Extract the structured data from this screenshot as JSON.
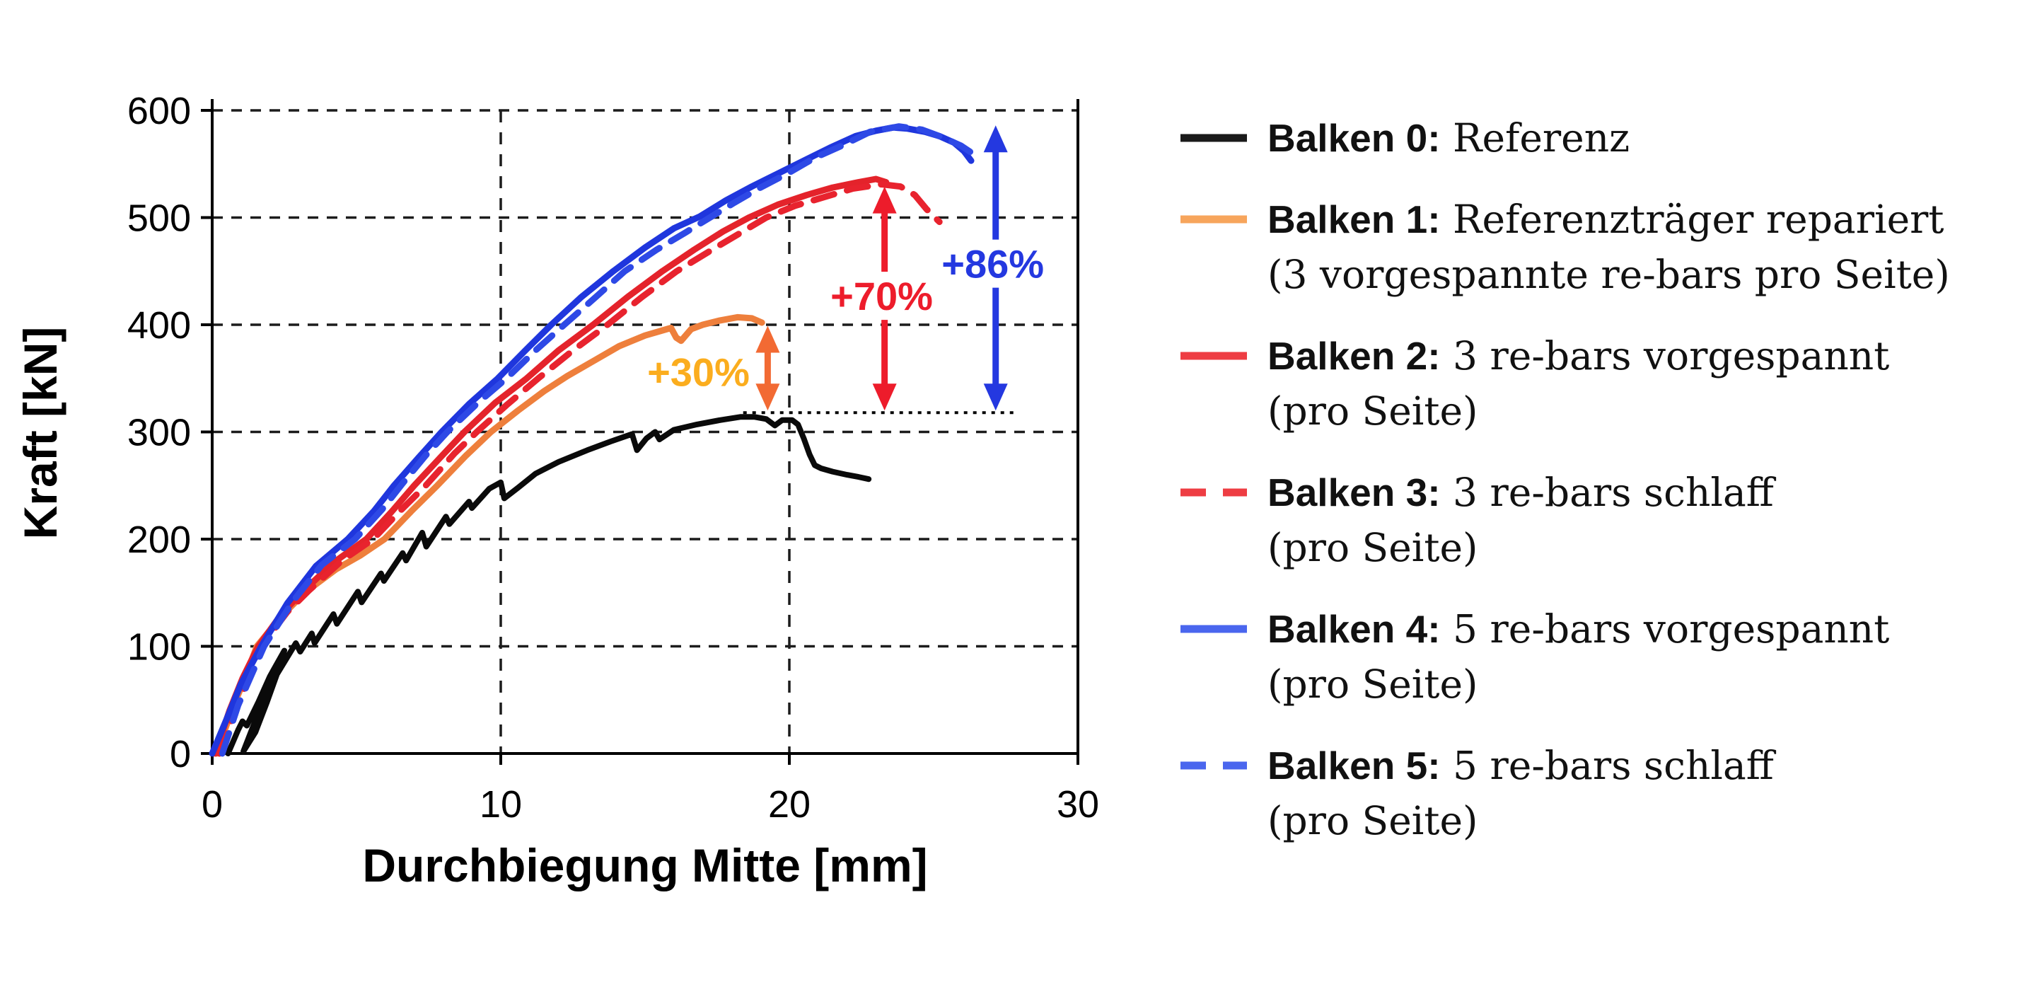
{
  "figure": {
    "background": "#ffffff"
  },
  "axes": {
    "x": {
      "label": "Durchbiegung Mitte [mm]",
      "ticks": [
        0,
        10,
        20,
        30
      ],
      "range": [
        0,
        30
      ],
      "gridlines": [
        10,
        20
      ]
    },
    "y": {
      "label": "Kraft [kN]",
      "ticks": [
        0,
        100,
        200,
        300,
        400,
        500,
        600
      ],
      "range": [
        0,
        600
      ],
      "gridlines": [
        100,
        200,
        300,
        400,
        500,
        600
      ]
    }
  },
  "chart_data": {
    "type": "line",
    "title": "",
    "xlabel": "Durchbiegung Mitte [mm]",
    "ylabel": "Kraft [kN]",
    "xlim": [
      0,
      30
    ],
    "ylim": [
      0,
      600
    ],
    "grid": "dashed",
    "legend_position": "right",
    "series": [
      {
        "id": "balken-0",
        "name": "Balken 0: Referenz",
        "color": "#0a0a0a",
        "style": "solid",
        "width": 8,
        "points": [
          [
            0.55,
            0
          ],
          [
            0.9,
            22
          ],
          [
            1.05,
            30
          ],
          [
            1.2,
            26
          ],
          [
            1.6,
            48
          ],
          [
            2.0,
            72
          ],
          [
            2.5,
            96
          ],
          [
            2.3,
            78
          ],
          [
            1.9,
            48
          ],
          [
            1.5,
            20
          ],
          [
            1.08,
            2
          ],
          [
            1.6,
            38
          ],
          [
            2.2,
            72
          ],
          [
            2.9,
            103
          ],
          [
            3.05,
            95
          ],
          [
            3.45,
            112
          ],
          [
            3.55,
            103
          ],
          [
            4.2,
            130
          ],
          [
            4.32,
            121
          ],
          [
            5.05,
            151
          ],
          [
            5.18,
            141
          ],
          [
            5.85,
            168
          ],
          [
            5.95,
            161
          ],
          [
            6.6,
            187
          ],
          [
            6.72,
            180
          ],
          [
            7.28,
            206
          ],
          [
            7.42,
            193
          ],
          [
            8.1,
            221
          ],
          [
            8.22,
            214
          ],
          [
            8.9,
            235
          ],
          [
            9.0,
            229
          ],
          [
            9.6,
            247
          ],
          [
            10.0,
            253
          ],
          [
            10.12,
            238
          ],
          [
            10.6,
            248
          ],
          [
            11.2,
            261
          ],
          [
            12.0,
            272
          ],
          [
            13.0,
            283
          ],
          [
            13.8,
            291
          ],
          [
            14.55,
            298
          ],
          [
            14.72,
            283
          ],
          [
            15.05,
            294
          ],
          [
            15.35,
            300
          ],
          [
            15.5,
            293
          ],
          [
            16.0,
            302
          ],
          [
            16.8,
            307
          ],
          [
            17.6,
            311
          ],
          [
            18.3,
            314
          ],
          [
            18.8,
            314
          ],
          [
            19.2,
            312
          ],
          [
            19.5,
            306
          ],
          [
            19.75,
            311
          ],
          [
            20.1,
            311
          ],
          [
            20.3,
            307
          ],
          [
            20.5,
            294
          ],
          [
            20.7,
            279
          ],
          [
            20.88,
            269
          ],
          [
            21.1,
            266
          ],
          [
            21.5,
            263
          ],
          [
            22.0,
            260
          ],
          [
            22.4,
            258
          ],
          [
            22.75,
            256
          ]
        ]
      },
      {
        "id": "balken-1",
        "name": "Balken 1: Referenzträger repariert (3 vorgespannte re-bars pro Seite)",
        "color": "#ee7f3c",
        "style": "solid",
        "width": 9,
        "points": [
          [
            0.15,
            0
          ],
          [
            0.7,
            42
          ],
          [
            1.1,
            68
          ],
          [
            1.55,
            100
          ],
          [
            2.4,
            128
          ],
          [
            3.2,
            150
          ],
          [
            4.3,
            172
          ],
          [
            5.15,
            185
          ],
          [
            5.97,
            200
          ],
          [
            6.9,
            226
          ],
          [
            7.8,
            250
          ],
          [
            8.8,
            278
          ],
          [
            9.66,
            300
          ],
          [
            10.6,
            320
          ],
          [
            11.5,
            338
          ],
          [
            12.3,
            352
          ],
          [
            13.2,
            366
          ],
          [
            14.1,
            380
          ],
          [
            15.0,
            390
          ],
          [
            15.9,
            397
          ],
          [
            16.08,
            388
          ],
          [
            16.25,
            385
          ],
          [
            16.6,
            396
          ],
          [
            17.0,
            400
          ],
          [
            17.6,
            404
          ],
          [
            18.2,
            407
          ],
          [
            18.7,
            406
          ],
          [
            19.05,
            402
          ]
        ]
      },
      {
        "id": "balken-2",
        "name": "Balken 2: 3 re-bars vorgespannt (pro Seite)",
        "color": "#e4232b",
        "style": "solid",
        "width": 9,
        "points": [
          [
            0.1,
            0
          ],
          [
            0.6,
            40
          ],
          [
            1.05,
            70
          ],
          [
            1.6,
            100
          ],
          [
            2.4,
            130
          ],
          [
            3.1,
            150
          ],
          [
            4.2,
            178
          ],
          [
            5.34,
            200
          ],
          [
            6.2,
            225
          ],
          [
            7.0,
            250
          ],
          [
            7.9,
            276
          ],
          [
            8.74,
            300
          ],
          [
            9.8,
            327
          ],
          [
            10.9,
            350
          ],
          [
            12.0,
            376
          ],
          [
            13.2,
            400
          ],
          [
            14.4,
            426
          ],
          [
            15.6,
            450
          ],
          [
            16.7,
            470
          ],
          [
            17.7,
            487
          ],
          [
            18.6,
            500
          ],
          [
            19.6,
            512
          ],
          [
            20.6,
            521
          ],
          [
            21.5,
            528
          ],
          [
            22.4,
            533
          ],
          [
            23.0,
            536
          ],
          [
            23.35,
            533
          ]
        ]
      },
      {
        "id": "balken-3",
        "name": "Balken 3: 3 re-bars schlaff (pro Seite)",
        "color": "#e8232e",
        "style": "dashed",
        "width": 9,
        "points": [
          [
            0.25,
            0
          ],
          [
            0.8,
            40
          ],
          [
            1.25,
            70
          ],
          [
            1.7,
            100
          ],
          [
            2.6,
            132
          ],
          [
            3.35,
            152
          ],
          [
            4.5,
            180
          ],
          [
            5.58,
            200
          ],
          [
            6.5,
            226
          ],
          [
            7.4,
            250
          ],
          [
            8.4,
            280
          ],
          [
            9.17,
            300
          ],
          [
            10.2,
            325
          ],
          [
            11.3,
            350
          ],
          [
            12.5,
            376
          ],
          [
            13.7,
            400
          ],
          [
            14.9,
            426
          ],
          [
            16.1,
            450
          ],
          [
            17.2,
            468
          ],
          [
            18.2,
            484
          ],
          [
            19.2,
            500
          ],
          [
            20.2,
            511
          ],
          [
            21.2,
            519
          ],
          [
            22.2,
            527
          ],
          [
            23.2,
            531
          ],
          [
            23.85,
            529
          ],
          [
            24.35,
            521
          ],
          [
            24.75,
            508
          ],
          [
            25.05,
            500
          ],
          [
            25.2,
            496
          ]
        ]
      },
      {
        "id": "balken-4",
        "name": "Balken 4: 5 re-bars vorgespannt (pro Seite)",
        "color": "#1f36dd",
        "style": "solid",
        "width": 9,
        "points": [
          [
            0,
            0
          ],
          [
            0.5,
            32
          ],
          [
            1.0,
            65
          ],
          [
            1.7,
            100
          ],
          [
            2.6,
            140
          ],
          [
            3.6,
            175
          ],
          [
            4.7,
            200
          ],
          [
            5.6,
            226
          ],
          [
            6.3,
            250
          ],
          [
            7.15,
            276
          ],
          [
            7.95,
            300
          ],
          [
            8.9,
            326
          ],
          [
            9.9,
            350
          ],
          [
            10.85,
            376
          ],
          [
            11.75,
            400
          ],
          [
            12.8,
            426
          ],
          [
            13.9,
            450
          ],
          [
            15.0,
            472
          ],
          [
            16.0,
            490
          ],
          [
            16.9,
            501
          ],
          [
            17.8,
            516
          ],
          [
            18.7,
            529
          ],
          [
            19.6,
            541
          ],
          [
            20.5,
            553
          ],
          [
            21.4,
            565
          ],
          [
            22.3,
            576
          ],
          [
            23.0,
            581
          ],
          [
            23.6,
            584
          ],
          [
            24.1,
            583
          ],
          [
            24.7,
            580
          ],
          [
            25.2,
            576
          ],
          [
            25.7,
            570
          ],
          [
            26.05,
            562
          ],
          [
            26.3,
            553
          ]
        ]
      },
      {
        "id": "balken-5",
        "name": "Balken 5: 5 re-bars schlaff (pro Seite)",
        "color": "#2e49e6",
        "style": "dashed",
        "width": 9,
        "points": [
          [
            0.35,
            0
          ],
          [
            0.9,
            45
          ],
          [
            1.8,
            100
          ],
          [
            2.8,
            142
          ],
          [
            3.8,
            176
          ],
          [
            4.95,
            200
          ],
          [
            5.9,
            228
          ],
          [
            6.6,
            252
          ],
          [
            7.4,
            278
          ],
          [
            8.15,
            300
          ],
          [
            9.2,
            327
          ],
          [
            10.2,
            350
          ],
          [
            11.2,
            376
          ],
          [
            12.2,
            400
          ],
          [
            13.3,
            426
          ],
          [
            14.3,
            450
          ],
          [
            15.4,
            470
          ],
          [
            16.4,
            486
          ],
          [
            17.25,
            500
          ],
          [
            18.1,
            514
          ],
          [
            19.0,
            528
          ],
          [
            20.0,
            542
          ],
          [
            20.9,
            556
          ],
          [
            21.9,
            568
          ],
          [
            22.8,
            580
          ],
          [
            23.8,
            585
          ],
          [
            24.6,
            582
          ],
          [
            25.3,
            575
          ],
          [
            25.95,
            567
          ],
          [
            26.45,
            558
          ]
        ]
      }
    ],
    "annotations": {
      "reference_line": {
        "y": 318,
        "x_start": 18.4,
        "x_end": 27.85,
        "style": "dotted",
        "color": "#000000"
      },
      "arrows": [
        {
          "label": "+30%",
          "x": 19.25,
          "y_top": 399,
          "y_bottom": 320,
          "arrow_color": "#f26a33",
          "label_color": "#fbad1e",
          "label_x": 16.85,
          "label_y": 356,
          "label_on_shaft": false
        },
        {
          "label": "+70%",
          "x": 23.3,
          "y_top": 529,
          "y_bottom": 320,
          "arrow_color": "#ed1c2b",
          "label_color": "#ed1c2b",
          "label_x": 23.2,
          "label_y": 427,
          "label_on_shaft": true
        },
        {
          "label": "+86%",
          "x": 27.15,
          "y_top": 586,
          "y_bottom": 320,
          "arrow_color": "#2438e0",
          "label_color": "#2438e0",
          "label_x": 27.05,
          "label_y": 457,
          "label_on_shaft": true
        }
      ]
    }
  },
  "legend": {
    "entries": [
      {
        "bold": "Balken 0:",
        "line1": "Referenz",
        "line2": "",
        "color": "#1a1a1a",
        "dashed": false
      },
      {
        "bold": "Balken 1:",
        "line1": "Referenzträger repariert",
        "line2": "(3 vorgespannte re-bars pro Seite)",
        "color": "#f7a55c",
        "dashed": false
      },
      {
        "bold": "Balken 2:",
        "line1": "3 re-bars vorgespannt",
        "line2": "(pro Seite)",
        "color": "#ee3d43",
        "dashed": false
      },
      {
        "bold": "Balken 3:",
        "line1": "3 re-bars schlaff",
        "line2": "(pro Seite)",
        "color": "#ee3d43",
        "dashed": true
      },
      {
        "bold": "Balken 4:",
        "line1": "5 re-bars vorgespannt",
        "line2": "(pro Seite)",
        "color": "#4a66ee",
        "dashed": false
      },
      {
        "bold": "Balken 5:",
        "line1": "5 re-bars schlaff",
        "line2": "(pro Seite)",
        "color": "#4a66ee",
        "dashed": true
      }
    ]
  }
}
